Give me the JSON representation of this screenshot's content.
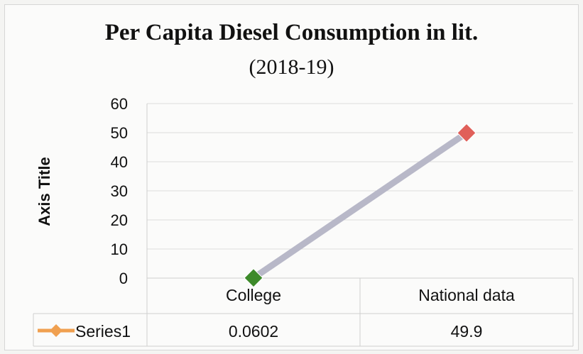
{
  "chart_data": {
    "type": "line",
    "title": "Per Capita Diesel Consumption  in lit.",
    "subtitle": "(2018-19)",
    "ylabel": "Axis Title",
    "xlabel": "",
    "categories": [
      "College",
      "National data"
    ],
    "series": [
      {
        "name": "Series1",
        "values": [
          0.0602,
          49.9
        ],
        "value_labels": [
          "0.0602",
          "49.9"
        ],
        "line_color": "#b8b8c8",
        "marker_colors": [
          "#3d8a2a",
          "#e0605a"
        ],
        "legend_color": "#f0a050"
      }
    ],
    "ylim": [
      0,
      60
    ],
    "yticks": [
      "0",
      "10",
      "20",
      "30",
      "40",
      "50",
      "60"
    ],
    "grid": true,
    "legend": "data-table"
  }
}
